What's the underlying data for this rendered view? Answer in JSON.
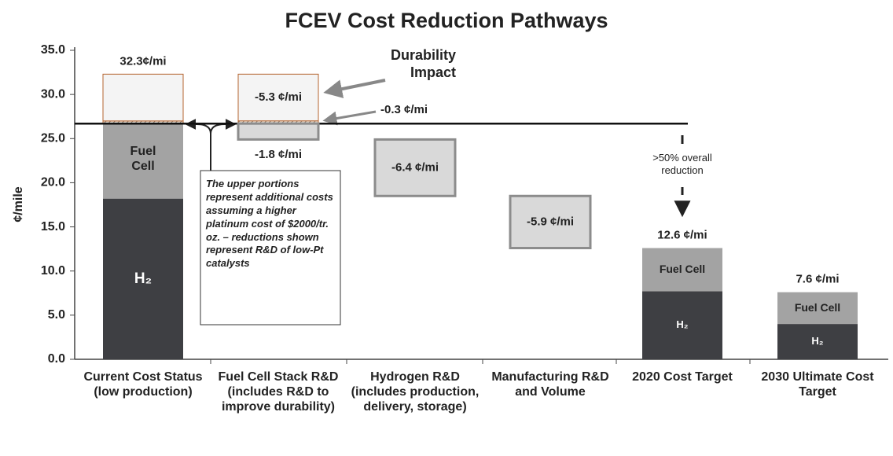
{
  "chart_data": {
    "type": "waterfall",
    "title": "FCEV Cost Reduction Pathways",
    "y_label": "¢/mile",
    "categories": [
      "Current Cost Status (low production)",
      "Fuel Cell Stack R&D (includes R&D to improve durability)",
      "Hydrogen R&D (includes production, delivery, storage)",
      "Manufacturing R&D and Volume",
      "2020 Cost Target",
      "2030 Ultimate Cost Target"
    ],
    "ylim": [
      0,
      35
    ],
    "yticks": [
      {
        "value": 0,
        "label": "0.0"
      },
      {
        "value": 5,
        "label": "5.0"
      },
      {
        "value": 10,
        "label": "10.0"
      },
      {
        "value": 15,
        "label": "15.0"
      },
      {
        "value": 20,
        "label": "20.0"
      },
      {
        "value": 25,
        "label": "25.0"
      },
      {
        "value": 30,
        "label": "30.0"
      },
      {
        "value": 35,
        "label": "35.0"
      }
    ],
    "series": [
      {
        "name": "H₂",
        "color": "#3e3f43",
        "values": [
          18.2,
          null,
          null,
          null,
          7.7,
          4.0
        ]
      },
      {
        "name": "Fuel Cell",
        "color": "#a3a3a3",
        "values": [
          8.5,
          null,
          null,
          null,
          4.9,
          3.6
        ]
      },
      {
        "color": "#f4f4f4",
        "border": "#b5652f",
        "hatch": true,
        "values": [
          0.3,
          null,
          null,
          null,
          null,
          null
        ]
      },
      {
        "color": "#f4f4f4",
        "border": "#b5652f",
        "values": [
          5.3,
          null,
          null,
          null,
          null,
          null
        ]
      }
    ],
    "totals": [
      32.3,
      null,
      null,
      null,
      12.6,
      7.6
    ],
    "total_labels": [
      "32.3¢/mi",
      null,
      null,
      null,
      "12.6 ¢/mi",
      "7.6 ¢/mi"
    ],
    "steps": [
      null,
      [
        -5.3,
        -0.3,
        -1.8
      ],
      [
        -6.4
      ],
      [
        -5.9
      ],
      null,
      null
    ],
    "step_labels": [
      null,
      [
        "-5.3 ¢/mi",
        "-0.3 ¢/mi",
        "-1.8 ¢/mi"
      ],
      [
        "-6.4 ¢/mi"
      ],
      [
        "-5.9 ¢/mi"
      ],
      null,
      null
    ],
    "step_color": "#d9d9d9",
    "step_border": "#8c8c8c",
    "annotations": [
      "Durability Impact",
      ">50% overall reduction",
      "The upper portions represent additional costs assuming a higher platinum cost of $2000/tr. oz. – reductions shown represent R&D of low-Pt catalysts"
    ]
  }
}
